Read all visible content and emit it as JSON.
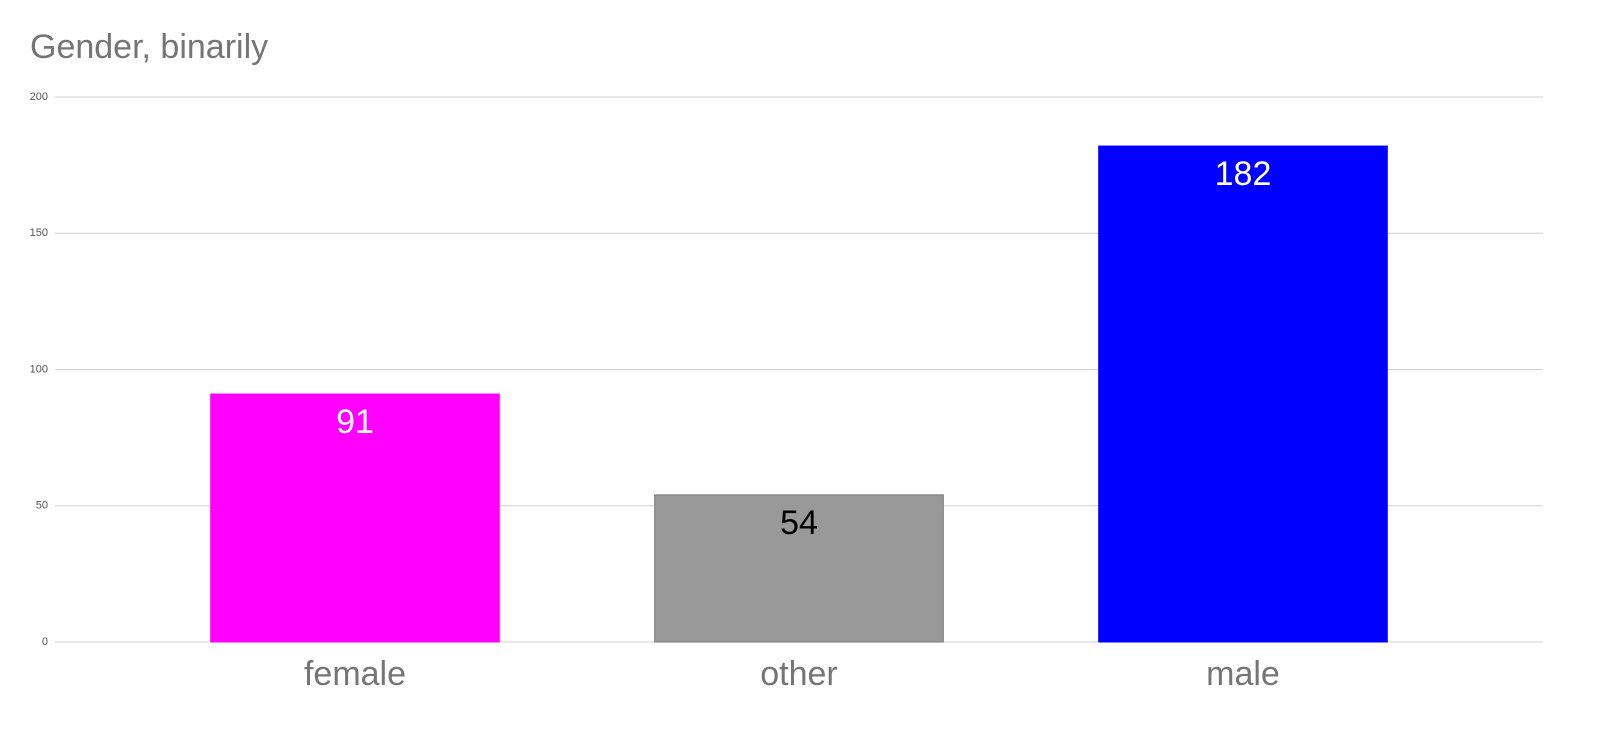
{
  "chart_data": {
    "type": "bar",
    "title": "Gender, binarily",
    "categories": [
      "female",
      "other",
      "male"
    ],
    "values": [
      91,
      54,
      182
    ],
    "colors": [
      "#ff00ff",
      "#999999",
      "#0000ff"
    ],
    "label_colors": [
      "#ffffff",
      "#000000",
      "#ffffff"
    ],
    "ylim": [
      0,
      200
    ],
    "yticks": [
      0,
      50,
      100,
      150,
      200
    ],
    "grid": true
  }
}
